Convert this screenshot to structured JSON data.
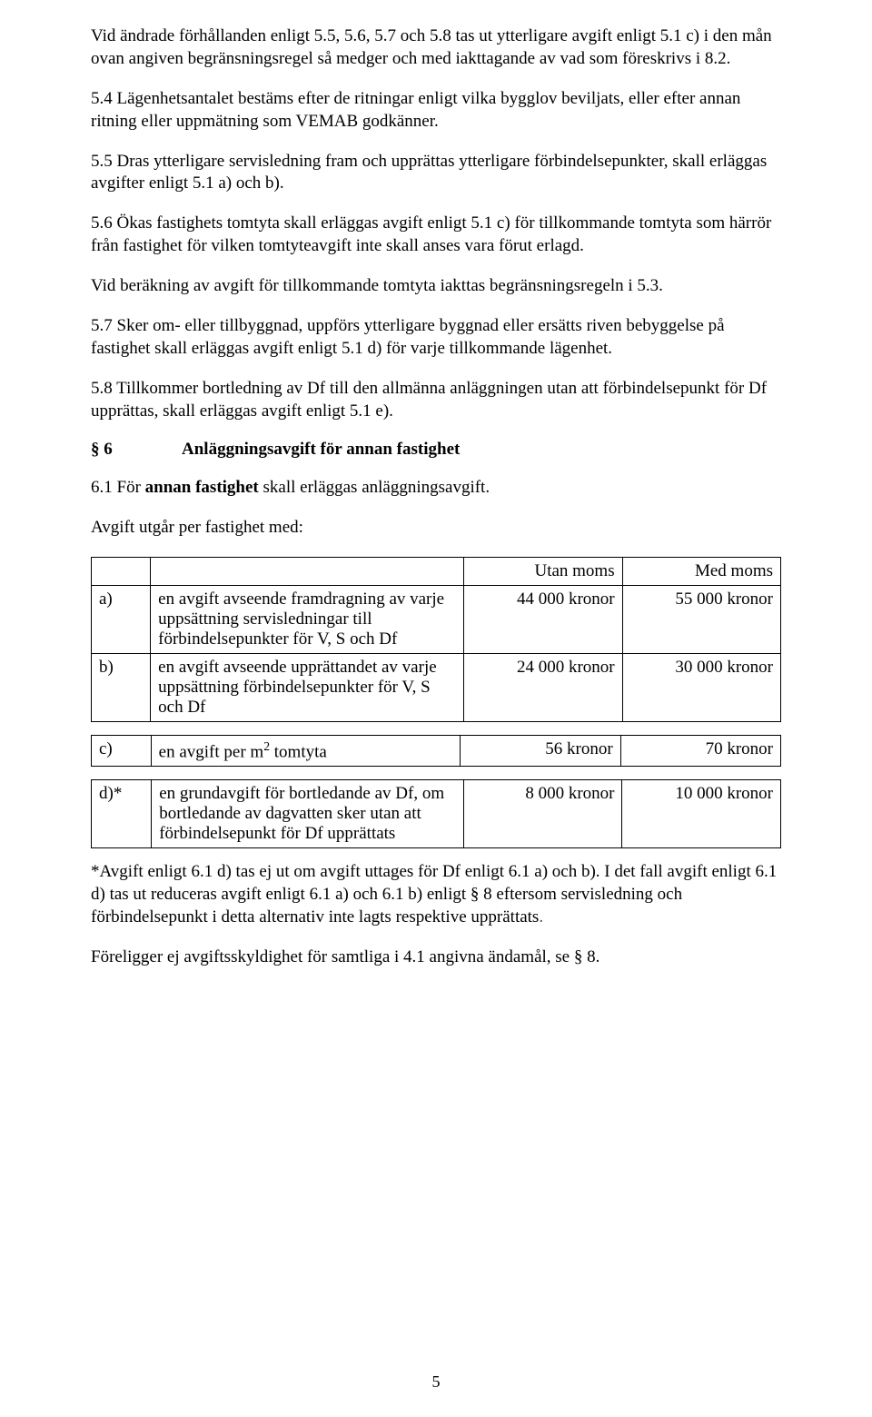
{
  "p1": "Vid ändrade förhållanden enligt 5.5, 5.6, 5.7 och 5.8 tas ut ytterligare avgift enligt 5.1 c) i den mån ovan angiven begränsningsregel så medger och med iakttagande av vad som föreskrivs i 8.2.",
  "p2": "5.4 Lägenhetsantalet bestäms efter de ritningar enligt vilka bygglov beviljats, eller efter annan ritning eller uppmätning som VEMAB godkänner.",
  "p3": "5.5 Dras ytterligare servisledning fram och upprättas ytterligare förbindelsepunkter, skall erläggas avgifter enligt 5.1 a) och b).",
  "p4": "5.6 Ökas fastighets tomtyta skall erläggas avgift enligt 5.1 c) för tillkommande tomtyta som härrör från fastighet för vilken tomtyteavgift inte skall anses vara förut erlagd.",
  "p5": "Vid beräkning av avgift för tillkommande tomtyta iakttas begränsningsregeln i 5.3.",
  "p6": "5.7 Sker om- eller tillbyggnad, uppförs ytterligare byggnad eller ersätts riven bebyggelse på fastighet skall erläggas avgift enligt 5.1 d) för varje tillkommande lägenhet.",
  "p7": "5.8 Tillkommer bortledning av Df till den allmänna anläggningen utan att förbindelsepunkt för Df upprättas, skall erläggas avgift enligt 5.1 e).",
  "section6": {
    "number": "§ 6",
    "title": "Anläggningsavgift för annan fastighet"
  },
  "p8_pre": "6.1 För ",
  "p8_bold": "annan fastighet",
  "p8_post": " skall erläggas anläggningsavgift.",
  "p9": "Avgift utgår per fastighet med:",
  "table": {
    "head_utan": "Utan moms",
    "head_med": "Med moms",
    "rows": [
      {
        "label": "a)",
        "desc": "en avgift avseende framdragning av varje uppsättning servisledningar till förbindelsepunkter för V, S och Df",
        "utan": "44 000 kronor",
        "med": "55 000 kronor"
      },
      {
        "label": "b)",
        "desc": "en avgift avseende upprättandet av varje uppsättning förbindelsepunkter för V, S och Df",
        "utan": "24 000 kronor",
        "med": "30 000 kronor"
      }
    ],
    "row_c": {
      "label": "c)",
      "desc_pre": "en avgift per m",
      "desc_sup": "2",
      "desc_post": " tomtyta",
      "utan": "56 kronor",
      "med": "70 kronor"
    },
    "row_d": {
      "label": "d)*",
      "desc": "en grundavgift för bortledande av Df, om bortledande av dagvatten sker utan att förbindelsepunkt för Df upprättats",
      "utan": "8 000 kronor",
      "med": "10 000 kronor"
    }
  },
  "note1_pre": "*Avgift enligt 6.1 d) tas ej ut om avgift uttages för Df enligt 6.1 a) och b). I det fall avgift enligt 6.1 d) tas ut reduceras avgift enligt 6.1 a) och 6.1 b) enligt § 8 eftersom servisledning och förbindelsepunkt i detta alternativ inte lagts respektive upprättats",
  "note1_dot": ".",
  "note2": "Föreligger ej avgiftsskyldighet för samtliga i 4.1 angivna ändamål, se § 8.",
  "page_number": "5"
}
